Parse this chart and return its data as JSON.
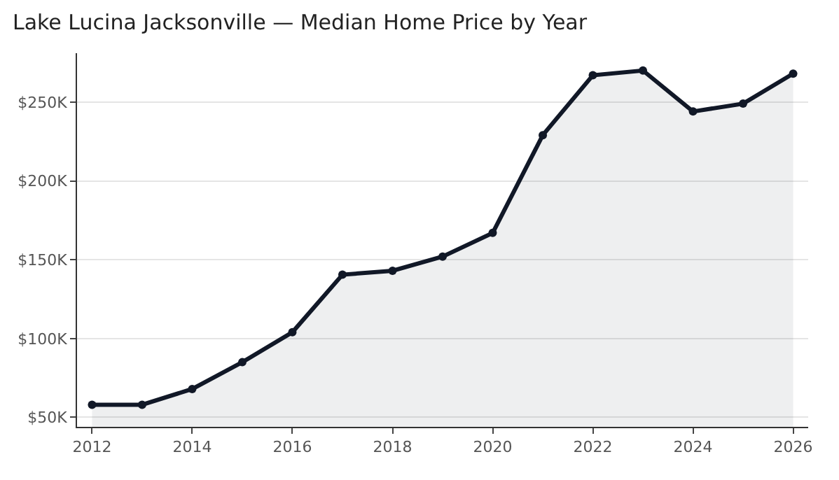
{
  "chart_data": {
    "type": "area",
    "title": "Lake Lucina Jacksonville — Median Home Price by Year",
    "x": [
      2012,
      2013,
      2014,
      2015,
      2016,
      2017,
      2018,
      2019,
      2020,
      2021,
      2022,
      2023,
      2024,
      2025,
      2026
    ],
    "series": [
      {
        "color": "#111827",
        "values": [
          58000,
          58000,
          68000,
          85000,
          104000,
          140500,
          143000,
          152000,
          167000,
          229000,
          267000,
          270000,
          244000,
          249000,
          268000
        ]
      }
    ],
    "xlim": [
      2011.7,
      2026.3
    ],
    "xticks": [
      2012,
      2014,
      2016,
      2018,
      2020,
      2022,
      2024,
      2026
    ],
    "ylim": [
      44000,
      281000
    ],
    "yticks": [
      {
        "value": 50000,
        "label": "$50K"
      },
      {
        "value": 100000,
        "label": "$100K"
      },
      {
        "value": 150000,
        "label": "$150K"
      },
      {
        "value": 200000,
        "label": "$200K"
      },
      {
        "value": 250000,
        "label": "$250K"
      }
    ],
    "grid": "y",
    "legend": false,
    "marker": "circle",
    "line_style": "solid"
  }
}
